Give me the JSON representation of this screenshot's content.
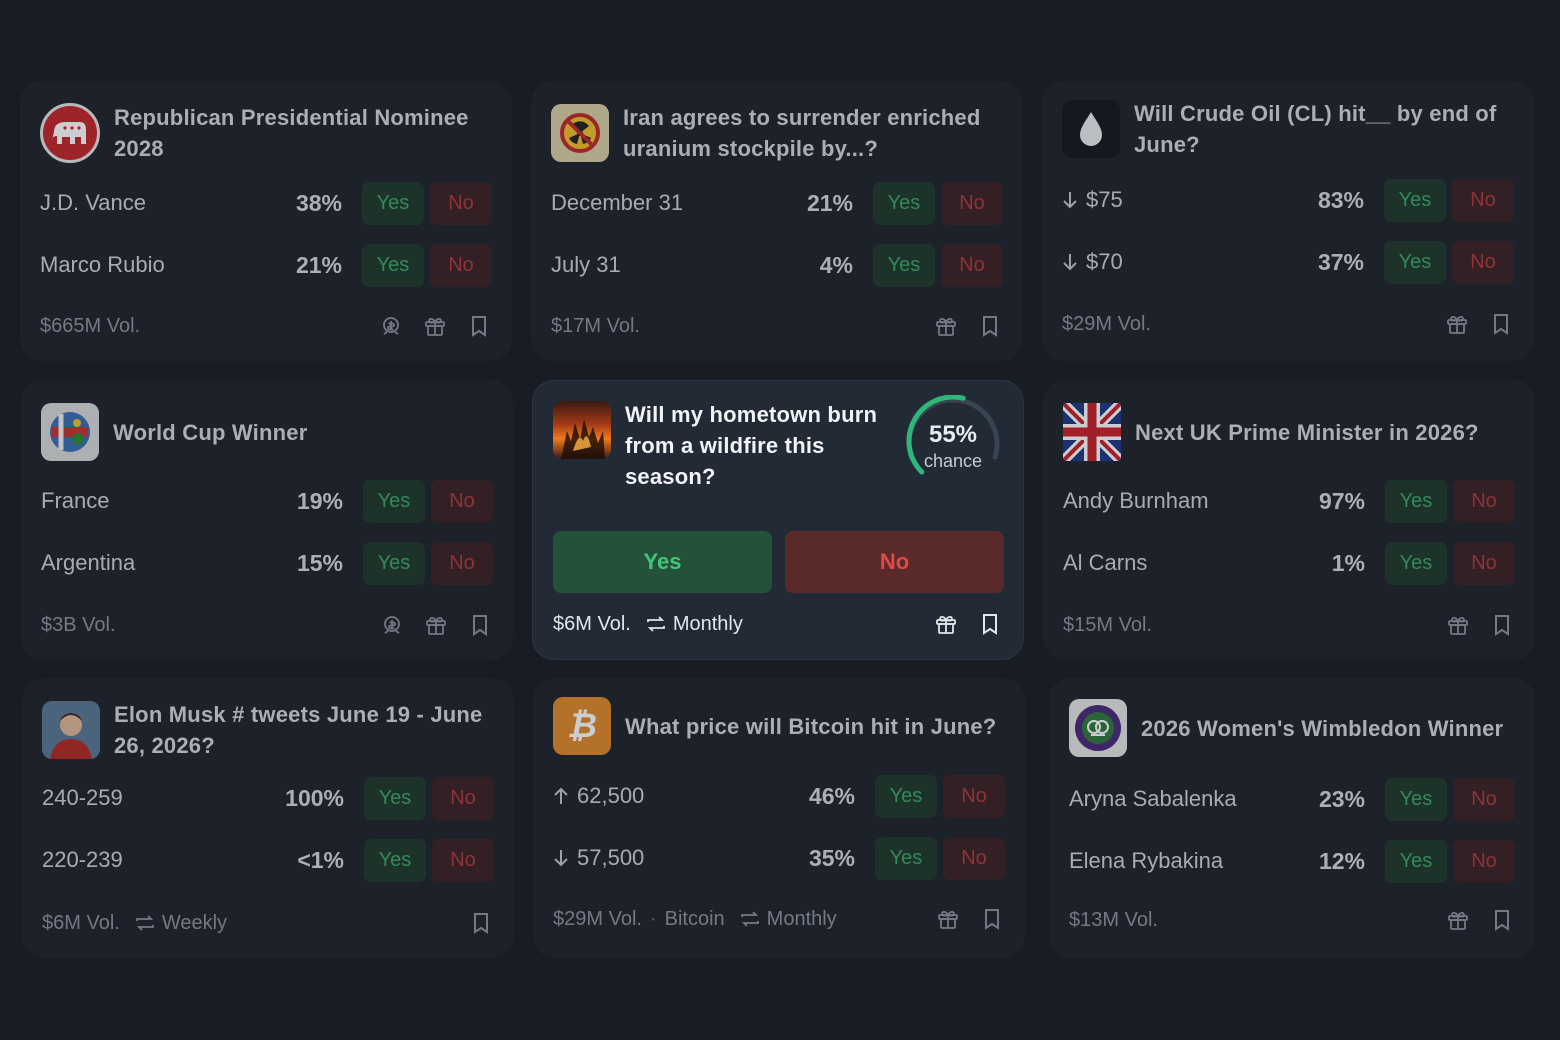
{
  "cards": [
    {
      "title": "Republican Presidential Nominee 2028",
      "thumb_icon": "elephant-icon",
      "rows": [
        {
          "label": "J.D. Vance",
          "pct": "38%",
          "yes": "Yes",
          "no": "No"
        },
        {
          "label": "Marco Rubio",
          "pct": "21%",
          "yes": "Yes",
          "no": "No"
        }
      ],
      "volume": "$665M Vol."
    },
    {
      "title": "Iran agrees to surrender enriched uranium stockpile by...?",
      "thumb_icon": "no-nuclear-icon",
      "rows": [
        {
          "label": "December 31",
          "pct": "21%",
          "yes": "Yes",
          "no": "No"
        },
        {
          "label": "July 31",
          "pct": "4%",
          "yes": "Yes",
          "no": "No"
        }
      ],
      "volume": "$17M Vol."
    },
    {
      "title": "Will Crude Oil (CL) hit__ by end of June?",
      "thumb_icon": "oil-drop-icon",
      "rows": [
        {
          "label": "$75",
          "pct": "83%",
          "yes": "Yes",
          "no": "No",
          "arrow": "down"
        },
        {
          "label": "$70",
          "pct": "37%",
          "yes": "Yes",
          "no": "No",
          "arrow": "down"
        }
      ],
      "volume": "$29M Vol."
    },
    {
      "title": "World Cup Winner",
      "thumb_icon": "world-cup-ball-icon",
      "rows": [
        {
          "label": "France",
          "pct": "19%",
          "yes": "Yes",
          "no": "No"
        },
        {
          "label": "Argentina",
          "pct": "15%",
          "yes": "Yes",
          "no": "No"
        }
      ],
      "volume": "$3B Vol."
    },
    {
      "title": "Will my hometown burn from a wildfire this season?",
      "thumb_icon": "wildfire-image",
      "chance_value": "55%",
      "chance_fraction": 0.55,
      "chance_label": "chance",
      "yes": "Yes",
      "no": "No",
      "volume": "$6M Vol.",
      "recurrence": "Monthly"
    },
    {
      "title": "Next UK Prime Minister in 2026?",
      "thumb_icon": "union-jack-flag",
      "rows": [
        {
          "label": "Andy Burnham",
          "pct": "97%",
          "yes": "Yes",
          "no": "No"
        },
        {
          "label": "Al Carns",
          "pct": "1%",
          "yes": "Yes",
          "no": "No"
        }
      ],
      "volume": "$15M Vol."
    },
    {
      "title": "Elon Musk # tweets June 19 - June 26, 2026?",
      "thumb_icon": "person-avatar",
      "rows": [
        {
          "label": "240-259",
          "pct": "100%",
          "yes": "Yes",
          "no": "No"
        },
        {
          "label": "220-239",
          "pct": "<1%",
          "yes": "Yes",
          "no": "No"
        }
      ],
      "volume": "$6M Vol.",
      "recurrence": "Weekly"
    },
    {
      "title": "What price will Bitcoin hit in June?",
      "thumb_icon": "bitcoin-icon",
      "rows": [
        {
          "label": "62,500",
          "pct": "46%",
          "yes": "Yes",
          "no": "No",
          "arrow": "up"
        },
        {
          "label": "57,500",
          "pct": "35%",
          "yes": "Yes",
          "no": "No",
          "arrow": "down"
        }
      ],
      "volume": "$29M Vol.",
      "tag": "Bitcoin",
      "recurrence": "Monthly"
    },
    {
      "title": "2026 Women's Wimbledon Winner",
      "thumb_icon": "wimbledon-logo",
      "rows": [
        {
          "label": "Aryna Sabalenka",
          "pct": "23%",
          "yes": "Yes",
          "no": "No"
        },
        {
          "label": "Elena Rybakina",
          "pct": "12%",
          "yes": "Yes",
          "no": "No"
        }
      ],
      "volume": "$13M Vol."
    }
  ],
  "colors": {
    "background": "#181c24",
    "card": "#1e232c",
    "yes_green": "#3ba866",
    "no_red": "#b13a3c",
    "gauge_green": "#2fb67a"
  }
}
